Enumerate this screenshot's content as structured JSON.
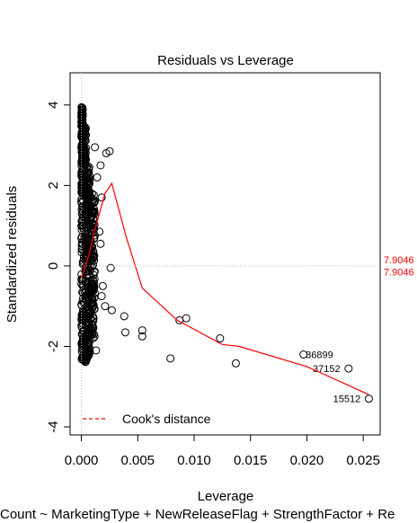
{
  "chart_data": {
    "type": "scatter",
    "title": "Residuals vs Leverage",
    "xlabel": "Leverage",
    "ylabel": "Standardized residuals",
    "subtitle": "Count ~ MarketingType + NewReleaseFlag + StrengthFactor + Re",
    "xlim": [
      -0.001,
      0.0265
    ],
    "ylim": [
      -4.2,
      4.8
    ],
    "x_ticks": [
      "0.000",
      "0.005",
      "0.010",
      "0.015",
      "0.020",
      "0.025"
    ],
    "y_ticks": [
      "-4",
      "-2",
      "0",
      "2",
      "4"
    ],
    "grid": false,
    "legend": {
      "position": "bottom-left",
      "entries": [
        "Cook's distance"
      ]
    },
    "cooks_contour_label": "7.9046",
    "cooks_contour_level": 7.9046,
    "cooks_contour_color": "#ff0000",
    "smoother_color": "#ff0000",
    "point_color": "#000000",
    "labeled_points": [
      {
        "label": "36899",
        "x": 0.0195,
        "y": -2.2
      },
      {
        "label": "37152",
        "x": 0.0236,
        "y": -2.55
      },
      {
        "label": "15512",
        "x": 0.0254,
        "y": -3.3
      }
    ],
    "outlier_points": [
      {
        "x": 0.0255,
        "y": -3.3
      },
      {
        "x": 0.0237,
        "y": -2.55
      },
      {
        "x": 0.0197,
        "y": -2.2
      },
      {
        "x": 0.0137,
        "y": -2.42
      },
      {
        "x": 0.0123,
        "y": -1.8
      },
      {
        "x": 0.0093,
        "y": -1.3
      },
      {
        "x": 0.0087,
        "y": -1.35
      },
      {
        "x": 0.0079,
        "y": -2.3
      },
      {
        "x": 0.0054,
        "y": -1.6
      },
      {
        "x": 0.0054,
        "y": -1.75
      },
      {
        "x": 0.0038,
        "y": -1.25
      },
      {
        "x": 0.0039,
        "y": -1.65
      },
      {
        "x": 0.0027,
        "y": -1.1
      },
      {
        "x": 0.0026,
        "y": -0.05
      },
      {
        "x": 0.0025,
        "y": 2.85
      },
      {
        "x": 0.0022,
        "y": 2.8
      },
      {
        "x": 0.0017,
        "y": 2.5
      },
      {
        "x": 0.0018,
        "y": 1.7
      },
      {
        "x": 0.0016,
        "y": 0.85
      },
      {
        "x": 0.0017,
        "y": 0.55
      },
      {
        "x": 0.0019,
        "y": -0.5
      },
      {
        "x": 0.0018,
        "y": -0.75
      },
      {
        "x": 0.0021,
        "y": -1.0
      },
      {
        "x": 0.0014,
        "y": 2.2
      },
      {
        "x": 0.0013,
        "y": -2.1
      },
      {
        "x": 0.0011,
        "y": -1.7
      },
      {
        "x": 0.0012,
        "y": 2.95
      }
    ],
    "smoother": {
      "x": [
        0.0,
        0.0003,
        0.0007,
        0.0011,
        0.0016,
        0.0021,
        0.0027,
        0.004,
        0.0054,
        0.0085,
        0.0125,
        0.014,
        0.02,
        0.0255
      ],
      "y": [
        -0.3,
        -0.05,
        0.3,
        0.8,
        1.3,
        1.8,
        2.05,
        0.7,
        -0.55,
        -1.35,
        -1.95,
        -2.0,
        -2.5,
        -3.2
      ]
    }
  }
}
